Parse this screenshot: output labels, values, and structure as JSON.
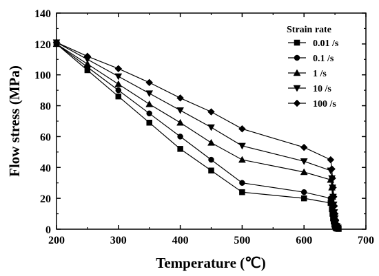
{
  "chart_data": {
    "type": "line",
    "xlabel": "Temperature (℃)",
    "ylabel": "Flow stress (MPa)",
    "xlim": [
      200,
      700
    ],
    "ylim": [
      0,
      140
    ],
    "xticks": [
      200,
      300,
      400,
      500,
      600,
      700
    ],
    "yticks": [
      0,
      20,
      40,
      60,
      80,
      100,
      120,
      140
    ],
    "legend_title": "Strain rate",
    "legend_position": "top-right",
    "grid": false,
    "series": [
      {
        "name": "0.01 /s",
        "marker": "square",
        "points": [
          [
            200,
            120
          ],
          [
            250,
            103
          ],
          [
            300,
            86
          ],
          [
            350,
            69
          ],
          [
            400,
            52
          ],
          [
            450,
            38
          ],
          [
            500,
            24
          ],
          [
            600,
            20
          ],
          [
            643,
            17
          ],
          [
            645,
            13
          ],
          [
            646,
            10
          ],
          [
            647,
            7
          ],
          [
            648,
            5
          ],
          [
            649,
            3
          ],
          [
            650,
            2
          ],
          [
            651,
            1
          ],
          [
            652,
            0.5
          ],
          [
            654,
            0.3
          ],
          [
            656,
            0.2
          ]
        ]
      },
      {
        "name": "0.1 /s",
        "marker": "circle",
        "points": [
          [
            200,
            120
          ],
          [
            250,
            105
          ],
          [
            300,
            90
          ],
          [
            350,
            75
          ],
          [
            400,
            60
          ],
          [
            450,
            45
          ],
          [
            500,
            30
          ],
          [
            600,
            24
          ],
          [
            643,
            20
          ],
          [
            645,
            16
          ],
          [
            646,
            12
          ],
          [
            647,
            9
          ],
          [
            648,
            6
          ],
          [
            649,
            4
          ],
          [
            650,
            2.5
          ],
          [
            651,
            1.5
          ],
          [
            653,
            0.8
          ],
          [
            655,
            0.4
          ]
        ]
      },
      {
        "name": "1 /s",
        "marker": "triangle-up",
        "points": [
          [
            200,
            120
          ],
          [
            250,
            107
          ],
          [
            300,
            94
          ],
          [
            350,
            81
          ],
          [
            400,
            69
          ],
          [
            450,
            56
          ],
          [
            500,
            45
          ],
          [
            600,
            37
          ],
          [
            643,
            32
          ],
          [
            645,
            27
          ],
          [
            646,
            21
          ],
          [
            647,
            16
          ],
          [
            648,
            12
          ],
          [
            649,
            8
          ],
          [
            650,
            5
          ],
          [
            651,
            3
          ],
          [
            653,
            1.5
          ],
          [
            655,
            0.8
          ]
        ]
      },
      {
        "name": "10 /s",
        "marker": "triangle-down",
        "points": [
          [
            200,
            121
          ],
          [
            250,
            110
          ],
          [
            300,
            99
          ],
          [
            350,
            88
          ],
          [
            400,
            77
          ],
          [
            450,
            66
          ],
          [
            500,
            54
          ],
          [
            600,
            44
          ],
          [
            643,
            38
          ],
          [
            645,
            33
          ],
          [
            646,
            27
          ],
          [
            647,
            21
          ],
          [
            648,
            16
          ],
          [
            649,
            11
          ],
          [
            650,
            7
          ],
          [
            651,
            4
          ],
          [
            653,
            2
          ],
          [
            655,
            1
          ]
        ]
      },
      {
        "name": "100 /s",
        "marker": "diamond",
        "points": [
          [
            200,
            121
          ],
          [
            250,
            112
          ],
          [
            300,
            104
          ],
          [
            350,
            95
          ],
          [
            400,
            85
          ],
          [
            450,
            76
          ],
          [
            500,
            65
          ],
          [
            600,
            53
          ],
          [
            643,
            45
          ],
          [
            645,
            39
          ],
          [
            646,
            33
          ],
          [
            647,
            27
          ],
          [
            648,
            21
          ],
          [
            649,
            15
          ],
          [
            650,
            10
          ],
          [
            651,
            6
          ],
          [
            653,
            3
          ],
          [
            655,
            1.5
          ]
        ]
      }
    ]
  }
}
